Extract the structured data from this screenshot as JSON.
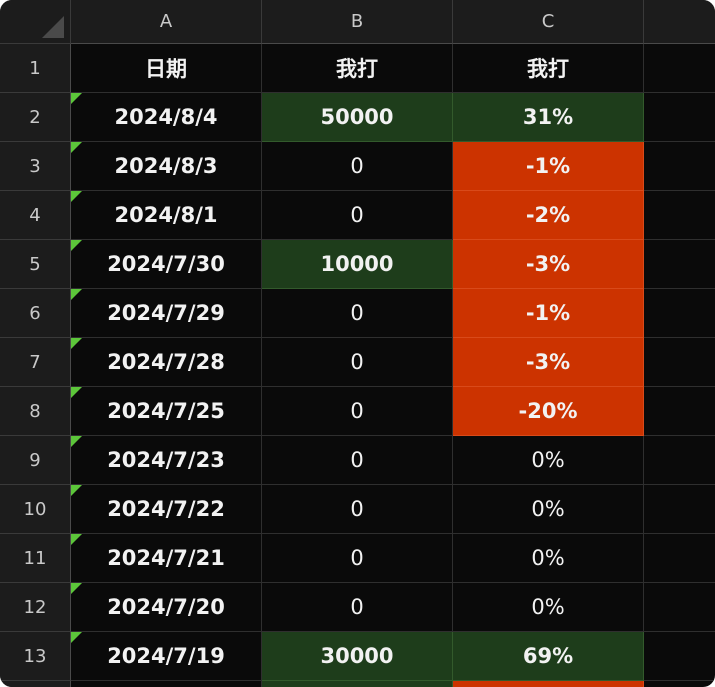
{
  "columns": [
    "A",
    "B",
    "C"
  ],
  "header_row": {
    "row": "1",
    "a": "日期",
    "b": "我打",
    "c": "我打"
  },
  "rows": [
    {
      "row": "2",
      "date": "2024/8/4",
      "b": "50000",
      "c": "31%",
      "b_style": "green",
      "c_style": "green"
    },
    {
      "row": "3",
      "date": "2024/8/3",
      "b": "0",
      "c": "-1%",
      "b_style": "",
      "c_style": "red"
    },
    {
      "row": "4",
      "date": "2024/8/1",
      "b": "0",
      "c": "-2%",
      "b_style": "",
      "c_style": "red"
    },
    {
      "row": "5",
      "date": "2024/7/30",
      "b": "10000",
      "c": "-3%",
      "b_style": "green",
      "c_style": "red"
    },
    {
      "row": "6",
      "date": "2024/7/29",
      "b": "0",
      "c": "-1%",
      "b_style": "",
      "c_style": "red"
    },
    {
      "row": "7",
      "date": "2024/7/28",
      "b": "0",
      "c": "-3%",
      "b_style": "",
      "c_style": "red"
    },
    {
      "row": "8",
      "date": "2024/7/25",
      "b": "0",
      "c": "-20%",
      "b_style": "",
      "c_style": "red"
    },
    {
      "row": "9",
      "date": "2024/7/23",
      "b": "0",
      "c": "0%",
      "b_style": "",
      "c_style": ""
    },
    {
      "row": "10",
      "date": "2024/7/22",
      "b": "0",
      "c": "0%",
      "b_style": "",
      "c_style": ""
    },
    {
      "row": "11",
      "date": "2024/7/21",
      "b": "0",
      "c": "0%",
      "b_style": "",
      "c_style": ""
    },
    {
      "row": "12",
      "date": "2024/7/20",
      "b": "0",
      "c": "0%",
      "b_style": "",
      "c_style": ""
    },
    {
      "row": "13",
      "date": "2024/7/19",
      "b": "30000",
      "c": "69%",
      "b_style": "green",
      "c_style": "green"
    }
  ],
  "colors": {
    "positive_fill": "#1e3d1b",
    "negative_fill": "#cc3300",
    "flag": "#5cc63a"
  }
}
